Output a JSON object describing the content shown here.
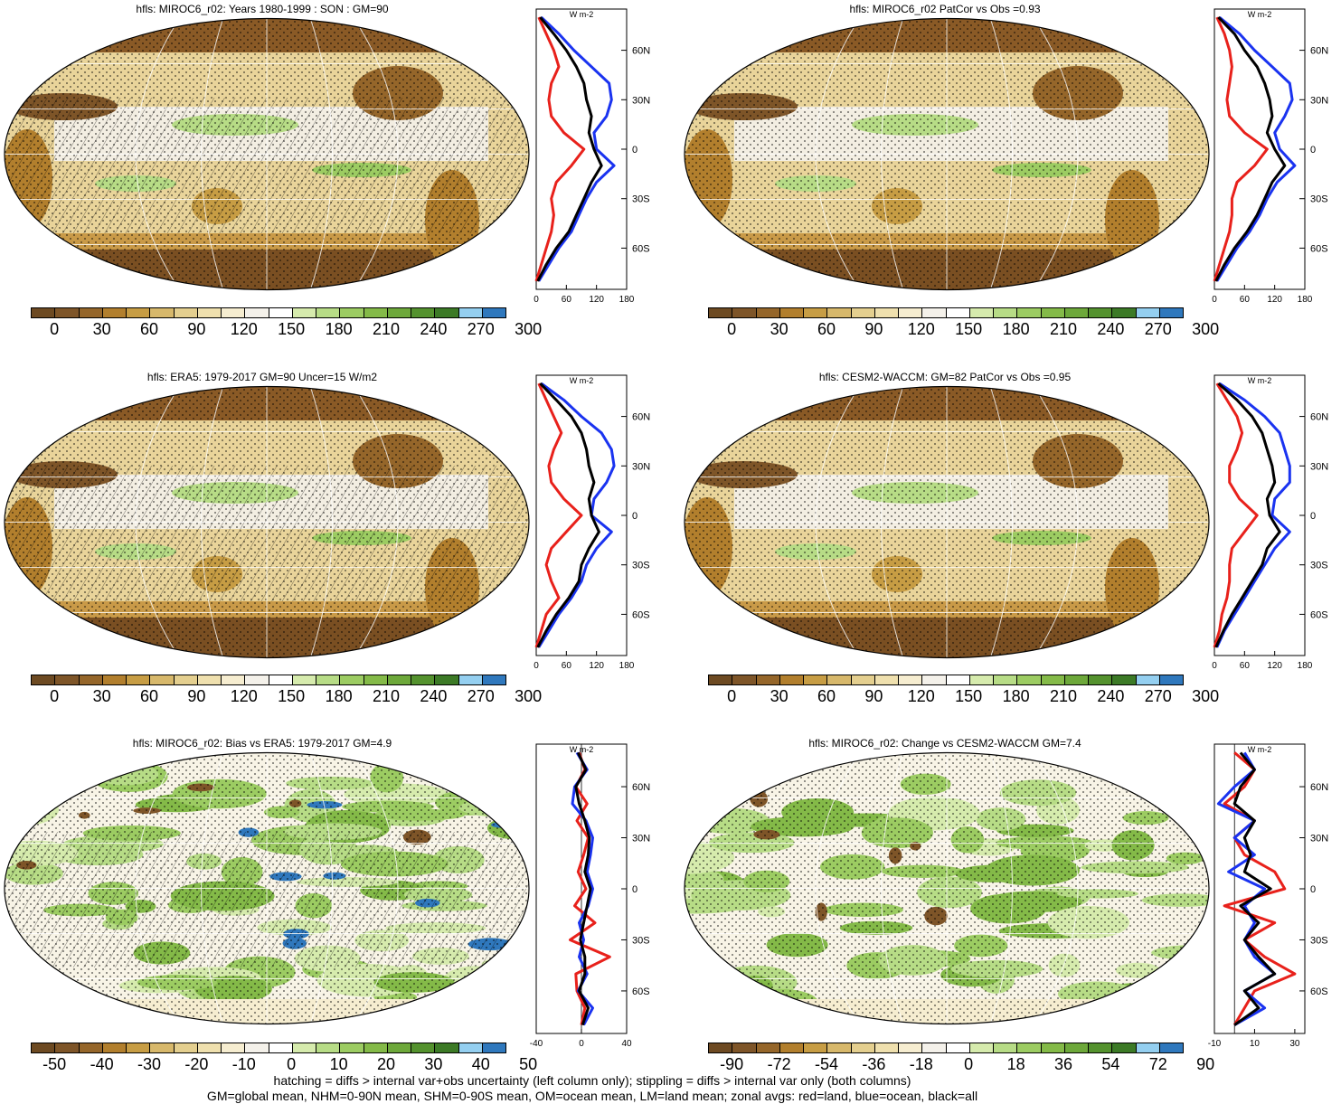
{
  "title": "hfls multi-panel comparison",
  "palette_main": [
    "#6d4a22",
    "#7e5528",
    "#95662a",
    "#b27f2d",
    "#c79d44",
    "#d7b86b",
    "#e4cf8f",
    "#efe0ae",
    "#f6edd0",
    "#f4f1ea",
    "#ffffff",
    "#d6ebad",
    "#b7dc86",
    "#9ccc62",
    "#84ba48",
    "#6da83a",
    "#54922e",
    "#3c7a26",
    "#94cff0",
    "#2f78bd"
  ],
  "palette_diff": [
    "#6d4a22",
    "#7e5528",
    "#95662a",
    "#b27f2d",
    "#c79d44",
    "#d7b86b",
    "#e4cf8f",
    "#efe0ae",
    "#f6edd0",
    "#f4f1ea",
    "#ffffff",
    "#d6ebad",
    "#b7dc86",
    "#9ccc62",
    "#84ba48",
    "#6da83a",
    "#54922e",
    "#3c7a26",
    "#94cff0",
    "#2f78bd"
  ],
  "colors": {
    "land": "#e8211b",
    "ocean": "#1a33f0",
    "all": "#000000"
  },
  "footer": {
    "line1": "hatching = diffs > internal var+obs uncertainty (left column only); stippling = diffs > internal var only (both columns)",
    "line2": "GM=global mean, NHM=0-90N mean, SHM=0-90S mean, OM=ocean mean, LM=land mean; zonal avgs: red=land, blue=ocean, black=all"
  },
  "chart_data": [
    {
      "type": "heatmap",
      "title": "hfls: MIROC6_r02: Years 1980-1999 : SON : GM=90",
      "colorbar_labels": [
        "0",
        "30",
        "60",
        "90",
        "120",
        "150",
        "180",
        "210",
        "240",
        "270",
        "300"
      ],
      "colorbar_levels": [
        -15,
        0,
        15,
        30,
        45,
        60,
        75,
        90,
        105,
        120,
        135,
        150,
        165,
        180,
        195,
        210,
        225,
        240,
        255,
        270,
        285,
        300,
        315
      ],
      "zonal": {
        "unit": "W m-2",
        "xlim": [
          0,
          180
        ],
        "xticks": [
          "0",
          "60",
          "120",
          "180"
        ],
        "yticks": [
          "60N",
          "30N",
          "0",
          "30S",
          "60S"
        ],
        "lat": [
          80,
          70,
          60,
          50,
          40,
          30,
          20,
          10,
          0,
          -10,
          -20,
          -30,
          -40,
          -50,
          -60,
          -70,
          -80
        ],
        "land": [
          5,
          20,
          35,
          45,
          30,
          25,
          30,
          55,
          95,
          70,
          40,
          30,
          35,
          30,
          20,
          10,
          0
        ],
        "ocean": [
          10,
          45,
          75,
          110,
          145,
          150,
          140,
          115,
          120,
          155,
          120,
          100,
          85,
          70,
          45,
          25,
          5
        ],
        "all": [
          8,
          35,
          60,
          80,
          95,
          100,
          110,
          105,
          115,
          130,
          110,
          95,
          80,
          65,
          40,
          20,
          3
        ]
      }
    },
    {
      "type": "heatmap",
      "title": "hfls: MIROC6_r02 PatCor vs Obs =0.93",
      "colorbar_labels": [
        "0",
        "30",
        "60",
        "90",
        "120",
        "150",
        "180",
        "210",
        "240",
        "270",
        "300"
      ],
      "zonal": {
        "unit": "W m-2",
        "xlim": [
          0,
          180
        ],
        "xticks": [
          "0",
          "60",
          "120",
          "180"
        ],
        "yticks": [
          "60N",
          "30N",
          "0",
          "30S",
          "60S"
        ],
        "lat": [
          80,
          70,
          60,
          50,
          40,
          30,
          20,
          10,
          0,
          -10,
          -20,
          -30,
          -40,
          -50,
          -60,
          -70,
          -80
        ],
        "land": [
          5,
          20,
          30,
          35,
          30,
          25,
          30,
          60,
          105,
          80,
          45,
          35,
          35,
          30,
          20,
          10,
          0
        ],
        "ocean": [
          10,
          50,
          80,
          115,
          150,
          155,
          140,
          120,
          130,
          160,
          125,
          105,
          90,
          70,
          45,
          25,
          5
        ],
        "all": [
          8,
          40,
          60,
          85,
          100,
          110,
          115,
          105,
          120,
          140,
          115,
          100,
          85,
          65,
          40,
          20,
          3
        ]
      }
    },
    {
      "type": "heatmap",
      "title": "hfls: ERA5: 1979-2017 GM=90 Uncer=15 W/m2",
      "colorbar_labels": [
        "0",
        "30",
        "60",
        "90",
        "120",
        "150",
        "180",
        "210",
        "240",
        "270",
        "300"
      ],
      "zonal": {
        "unit": "W m-2",
        "xlim": [
          0,
          180
        ],
        "xticks": [
          "0",
          "60",
          "120",
          "180"
        ],
        "yticks": [
          "60N",
          "30N",
          "0",
          "30S",
          "60S"
        ],
        "lat": [
          80,
          70,
          60,
          50,
          40,
          30,
          20,
          10,
          0,
          -10,
          -20,
          -30,
          -40,
          -50,
          -60,
          -70,
          -80
        ],
        "land": [
          5,
          20,
          35,
          50,
          35,
          25,
          30,
          55,
          90,
          60,
          30,
          20,
          30,
          45,
          20,
          10,
          0
        ],
        "ocean": [
          10,
          55,
          90,
          130,
          150,
          155,
          140,
          115,
          110,
          150,
          120,
          100,
          90,
          70,
          45,
          25,
          5
        ],
        "all": [
          8,
          40,
          70,
          90,
          100,
          105,
          115,
          105,
          110,
          125,
          105,
          90,
          85,
          65,
          40,
          20,
          3
        ]
      }
    },
    {
      "type": "heatmap",
      "title": "hfls: CESM2-WACCM: GM=82 PatCor vs Obs =0.95",
      "colorbar_labels": [
        "0",
        "30",
        "60",
        "90",
        "120",
        "150",
        "180",
        "210",
        "240",
        "270",
        "300"
      ],
      "zonal": {
        "unit": "W m-2",
        "xlim": [
          0,
          180
        ],
        "xticks": [
          "0",
          "60",
          "120",
          "180"
        ],
        "yticks": [
          "60N",
          "30N",
          "0",
          "30S",
          "60S"
        ],
        "lat": [
          80,
          70,
          60,
          50,
          40,
          30,
          20,
          10,
          0,
          -10,
          -20,
          -30,
          -40,
          -50,
          -60,
          -70,
          -80
        ],
        "land": [
          5,
          25,
          45,
          55,
          45,
          30,
          30,
          50,
          85,
          60,
          35,
          30,
          30,
          25,
          15,
          10,
          0
        ],
        "ocean": [
          10,
          60,
          100,
          130,
          140,
          150,
          150,
          120,
          115,
          150,
          120,
          100,
          80,
          60,
          40,
          20,
          5
        ],
        "all": [
          8,
          45,
          75,
          95,
          105,
          115,
          120,
          105,
          110,
          130,
          105,
          95,
          75,
          55,
          35,
          18,
          3
        ]
      }
    },
    {
      "type": "heatmap",
      "title": "hfls: MIROC6_r02: Bias vs ERA5: 1979-2017  GM=4.9",
      "colorbar_labels": [
        "-50",
        "-40",
        "-30",
        "-20",
        "-10",
        "0",
        "10",
        "20",
        "30",
        "40",
        "50"
      ],
      "zonal": {
        "unit": "W m-2",
        "xlim": [
          -40,
          40
        ],
        "xticks": [
          "-40",
          "0",
          "40"
        ],
        "yticks": [
          "60N",
          "30N",
          "0",
          "30S",
          "60S"
        ],
        "lat": [
          80,
          70,
          60,
          50,
          40,
          30,
          20,
          10,
          0,
          -10,
          -20,
          -30,
          -40,
          -50,
          -60,
          -70,
          -80
        ],
        "land": [
          -2,
          3,
          -5,
          5,
          -4,
          6,
          2,
          -3,
          4,
          -6,
          12,
          -10,
          25,
          -5,
          -4,
          3,
          0
        ],
        "ocean": [
          -4,
          5,
          -6,
          -8,
          4,
          10,
          8,
          5,
          10,
          6,
          -2,
          2,
          -2,
          5,
          -3,
          10,
          2
        ],
        "all": [
          -3,
          4,
          -5,
          -2,
          3,
          7,
          6,
          3,
          8,
          5,
          2,
          -1,
          3,
          3,
          -2,
          6,
          1
        ]
      }
    },
    {
      "type": "heatmap",
      "title": "hfls: MIROC6_r02: Change vs CESM2-WACCM GM=7.4",
      "colorbar_labels": [
        "-90",
        "-72",
        "-54",
        "-36",
        "-18",
        "0",
        "18",
        "36",
        "54",
        "72",
        "90"
      ],
      "zonal": {
        "unit": "W m-2",
        "xlim": [
          -10,
          35
        ],
        "xticks": [
          "-10",
          "10",
          "30"
        ],
        "yticks": [
          "60N",
          "30N",
          "0",
          "30S",
          "60S"
        ],
        "lat": [
          80,
          70,
          60,
          50,
          40,
          30,
          20,
          10,
          0,
          -10,
          -20,
          -30,
          -40,
          -50,
          -60,
          -70,
          -80
        ],
        "land": [
          0,
          10,
          5,
          -5,
          10,
          0,
          5,
          20,
          25,
          -5,
          20,
          5,
          15,
          30,
          10,
          5,
          0
        ],
        "ocean": [
          5,
          10,
          0,
          -8,
          10,
          0,
          10,
          -3,
          15,
          5,
          10,
          5,
          10,
          20,
          5,
          15,
          0
        ],
        "all": [
          3,
          10,
          3,
          0,
          10,
          5,
          8,
          5,
          18,
          3,
          12,
          5,
          12,
          20,
          5,
          12,
          0
        ]
      }
    }
  ]
}
